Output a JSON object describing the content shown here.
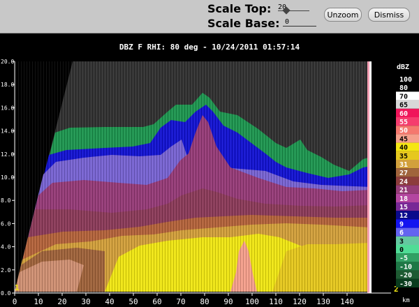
{
  "toolbar": {
    "scale_top_label": "Scale Top:",
    "scale_top_value": "20",
    "scale_base_label": "Scale Base:",
    "scale_base_value": "0",
    "unzoom_label": "Unzoom",
    "dismiss_label": "Dismiss"
  },
  "plot": {
    "title": "DBZ F  RHI: 80 deg  -  10/24/2011 01:57:14",
    "y_ticks": [
      "0.0",
      "2.0",
      "4.0",
      "6.0",
      "8.0",
      "10.0",
      "12.0",
      "14.0",
      "16.0",
      "18.0",
      "20.0"
    ],
    "x_ticks": [
      "0",
      "10",
      "20",
      "30",
      "40",
      "50",
      "60",
      "70",
      "80",
      "90",
      "100",
      "110",
      "120",
      "130",
      "140"
    ],
    "x_unit": "km",
    "marker_left": "1",
    "marker_right": "2"
  },
  "legend": {
    "unit": "dBZ",
    "levels": [
      {
        "label": "100",
        "color": "#000000"
      },
      {
        "label": "80",
        "color": "#000000"
      },
      {
        "label": "70",
        "color": "#ffffff"
      },
      {
        "label": "65",
        "color": "#d8d8d8"
      },
      {
        "label": "60",
        "color": "#f0145a"
      },
      {
        "label": "55",
        "color": "#f53c6e"
      },
      {
        "label": "50",
        "color": "#f5786e"
      },
      {
        "label": "45",
        "color": "#f5a08c"
      },
      {
        "label": "40",
        "color": "#f5e614"
      },
      {
        "label": "35",
        "color": "#e6c81e"
      },
      {
        "label": "31",
        "color": "#d2a03c"
      },
      {
        "label": "27",
        "color": "#a0643c"
      },
      {
        "label": "24",
        "color": "#8c3c3c"
      },
      {
        "label": "21",
        "color": "#963c78"
      },
      {
        "label": "18",
        "color": "#b446a0"
      },
      {
        "label": "15",
        "color": "#782896"
      },
      {
        "label": "12",
        "color": "#0a0a8c"
      },
      {
        "label": "9",
        "color": "#1414f0"
      },
      {
        "label": "6",
        "color": "#6464f0"
      },
      {
        "label": "3",
        "color": "#64c8a0"
      },
      {
        "label": "0",
        "color": "#50dc96"
      },
      {
        "label": "-5",
        "color": "#32a064"
      },
      {
        "label": "-10",
        "color": "#1e7846"
      },
      {
        "label": "-20",
        "color": "#1e5a32"
      },
      {
        "label": "-30",
        "color": "#0a3c1e"
      }
    ]
  }
}
